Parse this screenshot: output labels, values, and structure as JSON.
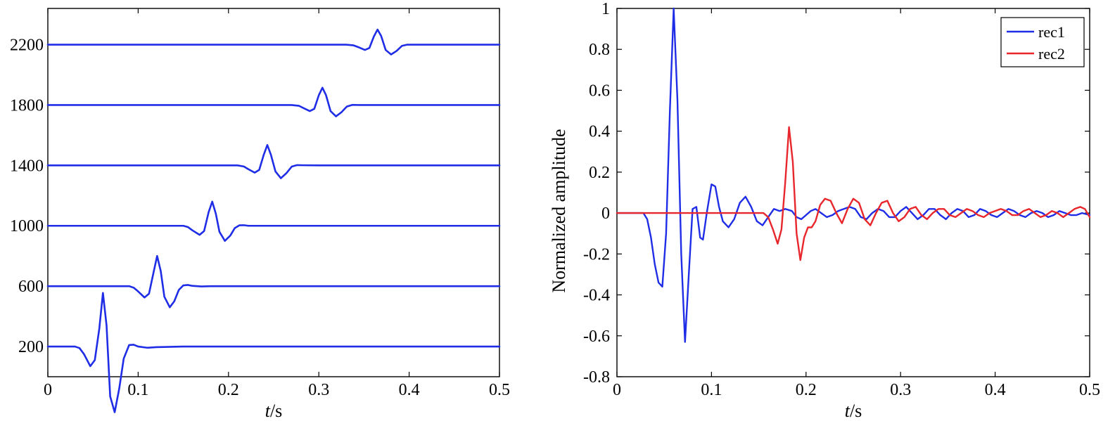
{
  "chart_data": [
    {
      "type": "line",
      "xlabel_italic": "t",
      "xlabel_unit": "/s",
      "ylabel": "",
      "xlim": [
        0,
        0.5
      ],
      "xticks": [
        "0",
        "0.1",
        "0.2",
        "0.3",
        "0.4",
        "0.5"
      ],
      "xtick_values": [
        0,
        0.1,
        0.2,
        0.3,
        0.4,
        0.5
      ],
      "ytick_labels": [
        "200",
        "600",
        "1000",
        "1400",
        "1800",
        "2200"
      ],
      "ylim": [
        0,
        2440
      ],
      "grid": false,
      "line_color": "#1f2ee6",
      "series": [
        {
          "offset": 200,
          "x": [
            0,
            0.03,
            0.035,
            0.04,
            0.047,
            0.052,
            0.057,
            0.061,
            0.065,
            0.069,
            0.074,
            0.079,
            0.084,
            0.09,
            0.095,
            0.1,
            0.11,
            0.12,
            0.15,
            0.25,
            0.5
          ],
          "y": [
            200,
            200,
            190,
            150,
            70,
            110,
            320,
            555,
            340,
            -130,
            -235,
            -80,
            120,
            210,
            212,
            200,
            192,
            196,
            200,
            200,
            200
          ]
        },
        {
          "offset": 600,
          "x": [
            0,
            0.09,
            0.095,
            0.1,
            0.107,
            0.112,
            0.117,
            0.121,
            0.125,
            0.129,
            0.135,
            0.14,
            0.145,
            0.15,
            0.155,
            0.16,
            0.17,
            0.18,
            0.5
          ],
          "y": [
            600,
            600,
            590,
            565,
            525,
            550,
            690,
            800,
            700,
            530,
            460,
            500,
            575,
            605,
            608,
            602,
            598,
            600,
            600
          ]
        },
        {
          "offset": 1000,
          "x": [
            0,
            0.15,
            0.155,
            0.16,
            0.168,
            0.173,
            0.178,
            0.182,
            0.186,
            0.19,
            0.196,
            0.202,
            0.207,
            0.212,
            0.217,
            0.222,
            0.235,
            0.5
          ],
          "y": [
            1000,
            1000,
            992,
            970,
            940,
            965,
            1090,
            1160,
            1080,
            960,
            900,
            935,
            985,
            1003,
            1004,
            1000,
            1000,
            1000
          ]
        },
        {
          "offset": 1400,
          "x": [
            0,
            0.21,
            0.217,
            0.222,
            0.229,
            0.234,
            0.239,
            0.243,
            0.247,
            0.252,
            0.258,
            0.264,
            0.27,
            0.276,
            0.283,
            0.3,
            0.5
          ],
          "y": [
            1400,
            1400,
            1393,
            1375,
            1352,
            1370,
            1470,
            1535,
            1470,
            1360,
            1315,
            1348,
            1392,
            1402,
            1401,
            1400,
            1400
          ]
        },
        {
          "offset": 1800,
          "x": [
            0,
            0.27,
            0.278,
            0.283,
            0.29,
            0.295,
            0.3,
            0.304,
            0.308,
            0.313,
            0.319,
            0.325,
            0.331,
            0.337,
            0.345,
            0.36,
            0.5
          ],
          "y": [
            1800,
            1800,
            1795,
            1780,
            1760,
            1775,
            1865,
            1915,
            1865,
            1760,
            1725,
            1752,
            1790,
            1801,
            1800,
            1800,
            1800
          ]
        },
        {
          "offset": 2200,
          "x": [
            0,
            0.33,
            0.338,
            0.344,
            0.351,
            0.356,
            0.361,
            0.365,
            0.369,
            0.374,
            0.38,
            0.386,
            0.392,
            0.398,
            0.406,
            0.42,
            0.5
          ],
          "y": [
            2200,
            2200,
            2196,
            2183,
            2165,
            2178,
            2255,
            2300,
            2258,
            2165,
            2135,
            2158,
            2192,
            2200,
            2200,
            2200,
            2200
          ]
        }
      ]
    },
    {
      "type": "line",
      "xlabel_italic": "t",
      "xlabel_unit": "/s",
      "ylabel": "Normalized amplitude",
      "xlim": [
        0,
        0.5
      ],
      "ylim": [
        -0.8,
        1
      ],
      "xticks": [
        "0",
        "0.1",
        "0.2",
        "0.3",
        "0.4",
        "0.5"
      ],
      "xtick_values": [
        0,
        0.1,
        0.2,
        0.3,
        0.4,
        0.5
      ],
      "yticks": [
        "-0.8",
        "-0.6",
        "-0.4",
        "-0.2",
        "0",
        "0.2",
        "0.4",
        "0.6",
        "0.8",
        "1"
      ],
      "ytick_values": [
        -0.8,
        -0.6,
        -0.4,
        -0.2,
        0,
        0.2,
        0.4,
        0.6,
        0.8,
        1
      ],
      "grid": false,
      "legend_position": "top-right",
      "series": [
        {
          "name": "rec1",
          "color": "#1f2ee6",
          "x": [
            0,
            0.028,
            0.032,
            0.036,
            0.04,
            0.044,
            0.048,
            0.052,
            0.056,
            0.06,
            0.064,
            0.068,
            0.072,
            0.076,
            0.08,
            0.084,
            0.088,
            0.091,
            0.095,
            0.1,
            0.104,
            0.108,
            0.112,
            0.118,
            0.124,
            0.13,
            0.136,
            0.142,
            0.148,
            0.154,
            0.16,
            0.166,
            0.172,
            0.178,
            0.185,
            0.19,
            0.195,
            0.2,
            0.205,
            0.21,
            0.216,
            0.222,
            0.228,
            0.234,
            0.24,
            0.246,
            0.252,
            0.258,
            0.264,
            0.27,
            0.276,
            0.282,
            0.288,
            0.294,
            0.3,
            0.306,
            0.312,
            0.318,
            0.324,
            0.33,
            0.336,
            0.342,
            0.348,
            0.354,
            0.36,
            0.366,
            0.372,
            0.378,
            0.384,
            0.39,
            0.396,
            0.402,
            0.408,
            0.414,
            0.42,
            0.426,
            0.432,
            0.438,
            0.444,
            0.45,
            0.456,
            0.462,
            0.468,
            0.474,
            0.48,
            0.486,
            0.492,
            0.5
          ],
          "y": [
            0,
            0,
            -0.03,
            -0.12,
            -0.25,
            -0.34,
            -0.36,
            -0.1,
            0.5,
            1.0,
            0.55,
            -0.2,
            -0.63,
            -0.3,
            0.02,
            0.03,
            -0.12,
            -0.13,
            0.0,
            0.14,
            0.13,
            0.03,
            -0.04,
            -0.07,
            -0.03,
            0.05,
            0.08,
            0.03,
            -0.04,
            -0.06,
            -0.02,
            0.02,
            0.01,
            0.02,
            0.01,
            -0.02,
            -0.03,
            -0.01,
            0.01,
            0.02,
            0.0,
            -0.02,
            -0.01,
            0.01,
            0.02,
            0.03,
            0.02,
            -0.02,
            -0.03,
            0.0,
            0.02,
            0.01,
            -0.02,
            -0.02,
            0.01,
            0.03,
            0.0,
            -0.03,
            -0.01,
            0.02,
            0.02,
            -0.01,
            -0.03,
            0.0,
            0.02,
            0.01,
            -0.02,
            -0.01,
            0.02,
            0.01,
            -0.01,
            -0.02,
            0.0,
            0.02,
            0.01,
            -0.01,
            -0.02,
            0.0,
            0.01,
            0.0,
            -0.02,
            -0.01,
            0.01,
            0.0,
            -0.01,
            -0.01,
            0.0,
            -0.01
          ]
        },
        {
          "name": "rec2",
          "color": "#e8262b",
          "x": [
            0,
            0.155,
            0.16,
            0.165,
            0.17,
            0.174,
            0.178,
            0.182,
            0.186,
            0.19,
            0.194,
            0.198,
            0.202,
            0.206,
            0.21,
            0.215,
            0.22,
            0.226,
            0.232,
            0.238,
            0.244,
            0.25,
            0.256,
            0.262,
            0.268,
            0.274,
            0.28,
            0.286,
            0.292,
            0.298,
            0.304,
            0.31,
            0.316,
            0.322,
            0.328,
            0.334,
            0.34,
            0.346,
            0.352,
            0.358,
            0.364,
            0.37,
            0.376,
            0.382,
            0.388,
            0.394,
            0.4,
            0.406,
            0.412,
            0.418,
            0.424,
            0.43,
            0.436,
            0.442,
            0.448,
            0.454,
            0.46,
            0.466,
            0.472,
            0.478,
            0.484,
            0.49,
            0.495,
            0.5
          ],
          "y": [
            0,
            0,
            -0.02,
            -0.08,
            -0.15,
            -0.08,
            0.15,
            0.42,
            0.25,
            -0.1,
            -0.23,
            -0.12,
            -0.07,
            -0.07,
            -0.04,
            0.04,
            0.07,
            0.06,
            0.0,
            -0.05,
            0.02,
            0.07,
            0.05,
            -0.03,
            -0.06,
            0.0,
            0.05,
            0.06,
            0.0,
            -0.04,
            -0.02,
            0.02,
            0.03,
            -0.01,
            -0.03,
            0.0,
            0.02,
            0.02,
            -0.01,
            -0.02,
            0.0,
            0.02,
            0.01,
            -0.01,
            -0.02,
            0.0,
            0.01,
            0.02,
            0.01,
            -0.01,
            -0.01,
            0.01,
            0.02,
            0.0,
            -0.02,
            -0.01,
            0.01,
            0.0,
            -0.02,
            0.0,
            0.02,
            0.03,
            0.02,
            -0.02
          ]
        }
      ]
    }
  ]
}
